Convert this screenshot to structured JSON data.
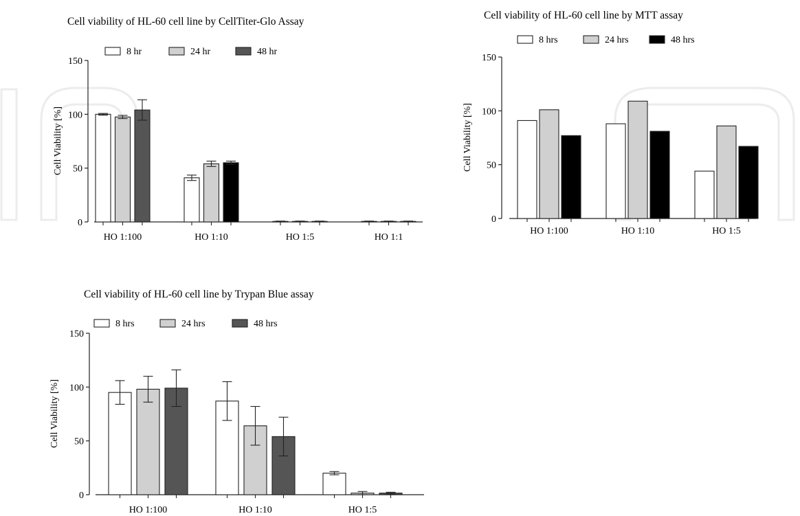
{
  "chart_data": [
    {
      "type": "bar",
      "title": "Cell viability of HL-60 cell line by CellTiter-Glo Assay",
      "xlabel": "",
      "ylabel": "Cell Viability [%]",
      "ylim": [
        0,
        150
      ],
      "yticks": [
        0,
        50,
        100,
        150
      ],
      "categories": [
        "HO 1:100",
        "HO 1:10",
        "HO 1:5",
        "HO 1:1"
      ],
      "legend_position": "top",
      "grid": false,
      "error_bars": true,
      "series": [
        {
          "name": "8 hr",
          "color": "#ffffff",
          "values": [
            100,
            41,
            0.5,
            0.5
          ],
          "errors": [
            0.8,
            2.5,
            0.3,
            0.3
          ]
        },
        {
          "name": "24 hr",
          "color": "#d0d0d0",
          "values": [
            97.5,
            54,
            0.5,
            0.5
          ],
          "errors": [
            1.5,
            2.5,
            0.3,
            0.3
          ]
        },
        {
          "name": "48 hr",
          "color": "#555555",
          "values": [
            104,
            55,
            0.5,
            0.5
          ],
          "errors": [
            9.5,
            1.5,
            0.3,
            0.3
          ],
          "category_colors": [
            null,
            "#000000",
            null,
            null
          ]
        }
      ]
    },
    {
      "type": "bar",
      "title": "Cell viability of HL-60 cell line by MTT assay",
      "xlabel": "",
      "ylabel": "Cell Viability [%]",
      "ylim": [
        0,
        150
      ],
      "yticks": [
        0,
        50,
        100,
        150
      ],
      "categories": [
        "HO 1:100",
        "HO 1:10",
        "HO 1:5"
      ],
      "legend_position": "top",
      "grid": false,
      "error_bars": false,
      "series": [
        {
          "name": "8 hrs",
          "color": "#ffffff",
          "values": [
            91,
            88,
            44
          ]
        },
        {
          "name": "24 hrs",
          "color": "#d0d0d0",
          "values": [
            101,
            109,
            86
          ]
        },
        {
          "name": "48 hrs",
          "color": "#000000",
          "values": [
            77,
            81,
            67
          ]
        }
      ]
    },
    {
      "type": "bar",
      "title": "Cell viability of HL-60 cell line by Trypan Blue assay",
      "xlabel": "",
      "ylabel": "Cell Viability [%]",
      "ylim": [
        0,
        150
      ],
      "yticks": [
        0,
        50,
        100,
        150
      ],
      "categories": [
        "HO 1:100",
        "HO 1:10",
        "HO 1:5"
      ],
      "legend_position": "top",
      "grid": false,
      "error_bars": true,
      "series": [
        {
          "name": "8 hrs",
          "color": "#ffffff",
          "values": [
            95,
            87,
            20
          ],
          "errors": [
            11,
            18,
            1.5
          ]
        },
        {
          "name": "24 hrs",
          "color": "#d0d0d0",
          "values": [
            98,
            64,
            1.5
          ],
          "errors": [
            12,
            18,
            1.5
          ]
        },
        {
          "name": "48 hrs",
          "color": "#555555",
          "values": [
            99,
            54,
            1.5
          ],
          "errors": [
            17,
            18,
            0.8
          ]
        }
      ]
    }
  ]
}
